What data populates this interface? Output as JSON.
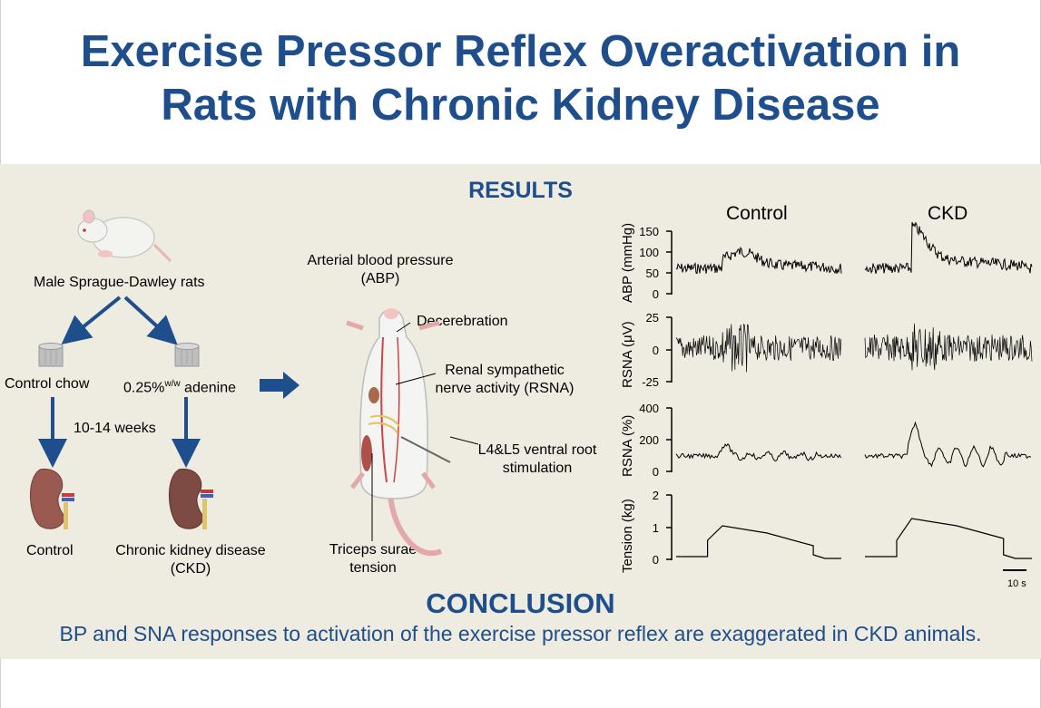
{
  "title_line1": "Exercise Pressor Reflex Overactivation in",
  "title_line2": "Rats with Chronic Kidney Disease",
  "results_heading": "RESULTS",
  "left_flow": {
    "rats": "Male Sprague-Dawley rats",
    "control_chow": "Control chow",
    "adenine_prefix": "0.25%",
    "adenine_sup": "w/w",
    "adenine_suffix": " adenine",
    "duration": "10-14 weeks",
    "control_kidney": "Control",
    "ckd_line1": "Chronic kidney disease",
    "ckd_line2": "(CKD)"
  },
  "middle": {
    "abp_line1": "Arterial blood pressure",
    "abp_line2": "(ABP)",
    "decerebration": "Decerebration",
    "rsna_line1": "Renal sympathetic",
    "rsna_line2": "nerve activity (RSNA)",
    "stim_line1": "L4&L5 ventral root",
    "stim_line2": "stimulation",
    "triceps_line1": "Triceps surae",
    "triceps_line2": "tension"
  },
  "traces": {
    "control_label": "Control",
    "ckd_label": "CKD",
    "abp_axis": "ABP (mmHg)",
    "abp_ticks": [
      "150",
      "100",
      "50",
      "0"
    ],
    "rsna_uv_axis": "RSNA (μV)",
    "rsna_uv_ticks": [
      "25",
      "0",
      "-25"
    ],
    "rsna_pct_axis": "RSNA (%)",
    "rsna_pct_ticks": [
      "400",
      "200",
      "0"
    ],
    "tension_axis": "Tension (kg)",
    "tension_ticks": [
      "2",
      "1",
      "0"
    ],
    "scale_bar": "10 s"
  },
  "conclusion_heading": "CONCLUSION",
  "conclusion_text": "BP and SNA responses to activation of the exercise pressor reflex are exaggerated in CKD animals.",
  "colors": {
    "title": "#1f4e8c",
    "panel": "#eeebe1",
    "arrow": "#1f4e8c",
    "kidney": "#8b4a4a"
  }
}
